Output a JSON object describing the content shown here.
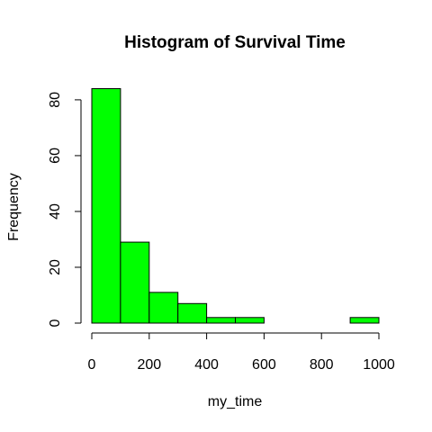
{
  "chart_data": {
    "type": "bar",
    "subtype": "histogram",
    "title": "Histogram of Survival Time",
    "xlabel": "my_time",
    "ylabel": "Frequency",
    "bin_edges": [
      0,
      100,
      200,
      300,
      400,
      500,
      600,
      700,
      800,
      900,
      1000
    ],
    "values": [
      84,
      29,
      11,
      7,
      2,
      2,
      0,
      0,
      0,
      2
    ],
    "xlim": [
      0,
      1000
    ],
    "ylim": [
      0,
      84
    ],
    "x_ticks": [
      0,
      200,
      400,
      600,
      800,
      1000
    ],
    "x_tick_labels": [
      "0",
      "200",
      "400",
      "600",
      "800",
      "1000"
    ],
    "y_ticks": [
      0,
      20,
      40,
      60,
      80
    ],
    "y_tick_labels": [
      "0",
      "20",
      "40",
      "60",
      "80"
    ],
    "grid": false,
    "legend": "none",
    "bar_color": "#00FF00",
    "bar_edge_color": "#000000"
  }
}
